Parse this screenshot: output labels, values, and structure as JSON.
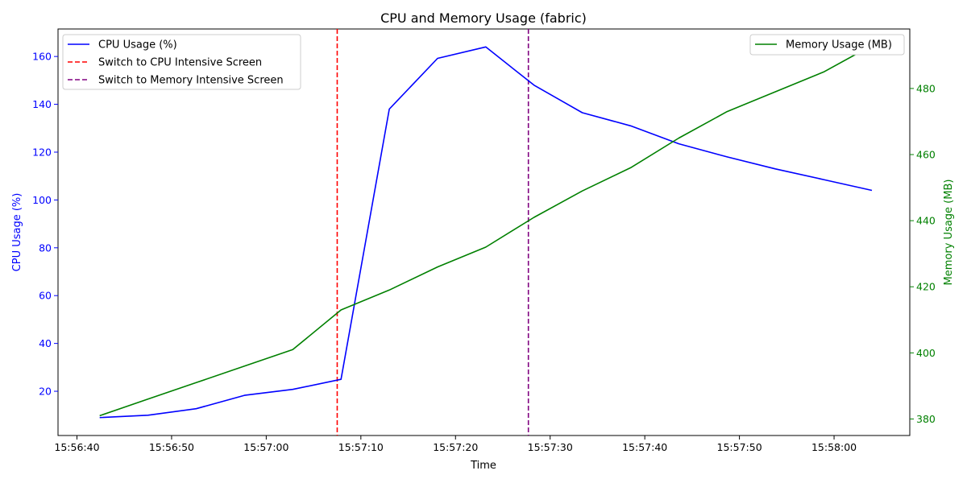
{
  "chart_data": {
    "type": "line",
    "title": "CPU and Memory Usage (fabric)",
    "xlabel": "Time",
    "ylabel_left": "CPU Usage (%)",
    "ylabel_right": "Memory Usage (MB)",
    "x_ticks": [
      "15:56:40",
      "15:56:50",
      "15:57:00",
      "15:57:10",
      "15:57:20",
      "15:57:30",
      "15:57:40",
      "15:57:50",
      "15:58:00"
    ],
    "y_left_ticks": [
      20,
      40,
      60,
      80,
      100,
      120,
      140,
      160
    ],
    "y_right_ticks": [
      380,
      400,
      420,
      440,
      460,
      480
    ],
    "xlim": [
      "15:56:38.0",
      "15:58:08.0"
    ],
    "ylim_left": [
      1.5,
      171.5
    ],
    "ylim_right": [
      375,
      498
    ],
    "series": [
      {
        "name": "CPU Usage (%)",
        "axis": "left",
        "color": "#0000ff",
        "x": [
          "15:56:42.4",
          "15:56:47.5",
          "15:56:52.6",
          "15:56:57.7",
          "15:57:02.8",
          "15:57:07.9",
          "15:57:13.0",
          "15:57:18.1",
          "15:57:23.2",
          "15:57:28.3",
          "15:57:33.4",
          "15:57:38.5",
          "15:57:43.6",
          "15:57:48.7",
          "15:57:53.8",
          "15:57:58.9",
          "15:58:04.0"
        ],
        "values": [
          9,
          10,
          12.7,
          18.3,
          20.8,
          25,
          138,
          159.2,
          164,
          148,
          136.5,
          131,
          123.5,
          118,
          113,
          108.5,
          104
        ]
      },
      {
        "name": "Memory Usage (MB)",
        "axis": "right",
        "color": "#008000",
        "x": [
          "15:56:42.4",
          "15:56:47.5",
          "15:56:52.6",
          "15:56:57.7",
          "15:57:02.8",
          "15:57:07.9",
          "15:57:13.0",
          "15:57:18.1",
          "15:57:23.2",
          "15:57:28.3",
          "15:57:33.4",
          "15:57:38.5",
          "15:57:43.6",
          "15:57:48.7",
          "15:57:53.8",
          "15:57:58.9",
          "15:58:04.0"
        ],
        "values": [
          381,
          386,
          391,
          396,
          401,
          413,
          419,
          426,
          432,
          441,
          449,
          456,
          465,
          473,
          479,
          485,
          493
        ]
      }
    ],
    "vlines": [
      {
        "name": "Switch to CPU Intensive Screen",
        "x": "15:57:07.5",
        "color": "#ff0000",
        "style": "dashed"
      },
      {
        "name": "Switch to Memory Intensive Screen",
        "x": "15:57:27.7",
        "color": "#800080",
        "style": "dashed"
      }
    ],
    "legend_left": [
      "CPU Usage (%)",
      "Switch to CPU Intensive Screen",
      "Switch to Memory Intensive Screen"
    ],
    "legend_right": [
      "Memory Usage (MB)"
    ],
    "legend_placement": [
      "top-left",
      "top-right"
    ],
    "grid": false,
    "colors": {
      "left_axis": "#0000ff",
      "right_axis": "#008000"
    }
  }
}
